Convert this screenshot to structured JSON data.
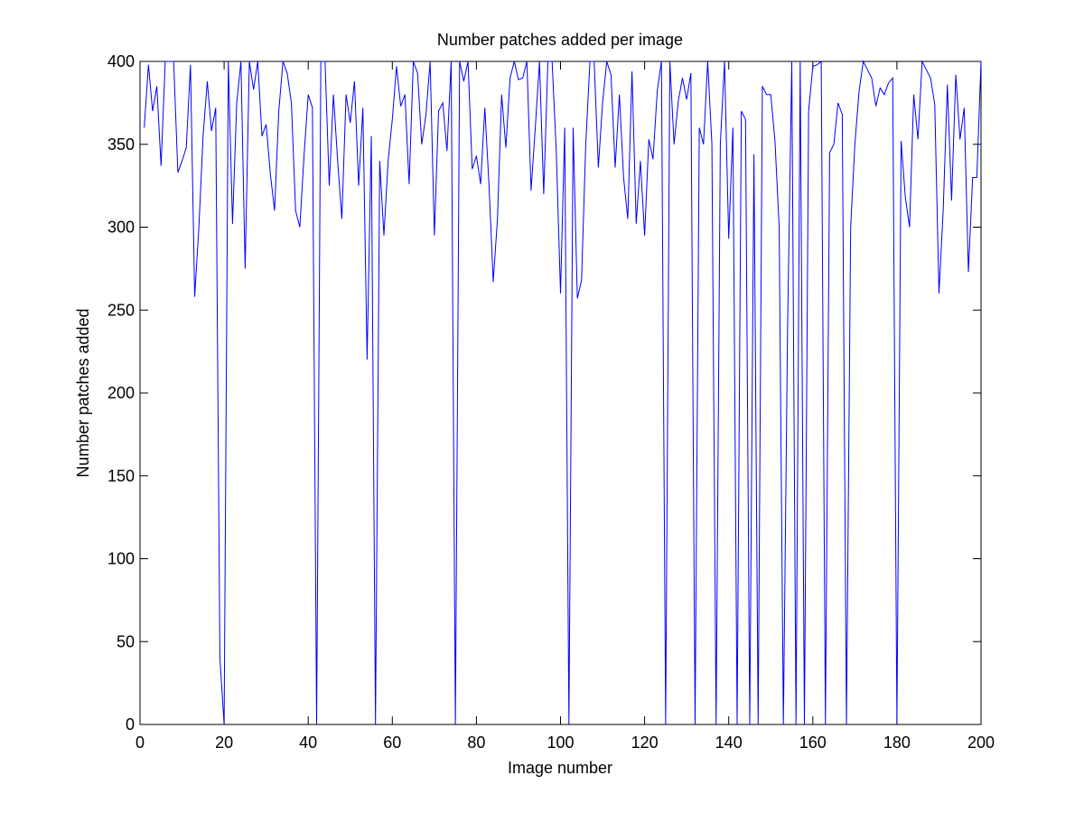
{
  "chart_data": {
    "type": "line",
    "title": "Number patches added per image",
    "xlabel": "Image number",
    "ylabel": "Number patches added",
    "xlim": [
      0,
      200
    ],
    "ylim": [
      0,
      400
    ],
    "xticks": [
      0,
      20,
      40,
      60,
      80,
      100,
      120,
      140,
      160,
      180,
      200
    ],
    "yticks": [
      0,
      50,
      100,
      150,
      200,
      250,
      300,
      350,
      400
    ],
    "grid": false,
    "line_color": "#0000ff",
    "series": [
      {
        "x": [
          1,
          2,
          3,
          4,
          5,
          6,
          7,
          8,
          9,
          10,
          11,
          12,
          13,
          14,
          15,
          16,
          17,
          18,
          19,
          20,
          21,
          22,
          23,
          24,
          25,
          26,
          27,
          28,
          29,
          30,
          31,
          32,
          33,
          34,
          35,
          36,
          37,
          38,
          39,
          40,
          41,
          42,
          43,
          44,
          45,
          46,
          47,
          48,
          49,
          50,
          51,
          52,
          53,
          54,
          55,
          56,
          57,
          58,
          59,
          60,
          61,
          62,
          63,
          64,
          65,
          66,
          67,
          68,
          69,
          70,
          71,
          72,
          73,
          74,
          75,
          76,
          77,
          78,
          79,
          80,
          81,
          82,
          83,
          84,
          85,
          86,
          87,
          88,
          89,
          90,
          91,
          92,
          93,
          94,
          95,
          96,
          97,
          98,
          99,
          100,
          101,
          102,
          103,
          104,
          105,
          106,
          107,
          108,
          109,
          110,
          111,
          112,
          113,
          114,
          115,
          116,
          117,
          118,
          119,
          120,
          121,
          122,
          123,
          124,
          125,
          126,
          127,
          128,
          129,
          130,
          131,
          132,
          133,
          134,
          135,
          136,
          137,
          138,
          139,
          140,
          141,
          142,
          143,
          144,
          145,
          146,
          147,
          148,
          149,
          150,
          151,
          152,
          153,
          154,
          155,
          156,
          157,
          158,
          159,
          160,
          161,
          162,
          163,
          164,
          165,
          166,
          167,
          168,
          169,
          170,
          171,
          172,
          173,
          174,
          175,
          176,
          177,
          178,
          179,
          180,
          181,
          182,
          183,
          184,
          185,
          186,
          187,
          188,
          189,
          190,
          191,
          192,
          193,
          194,
          195,
          196,
          197,
          198,
          199,
          200
        ],
        "values": [
          360,
          398,
          370,
          385,
          337,
          400,
          400,
          400,
          333,
          340,
          348,
          398,
          258,
          300,
          355,
          388,
          358,
          372,
          40,
          0,
          400,
          302,
          375,
          400,
          275,
          400,
          383,
          400,
          355,
          362,
          332,
          310,
          370,
          400,
          393,
          375,
          310,
          300,
          343,
          380,
          372,
          0,
          400,
          400,
          325,
          380,
          340,
          305,
          380,
          363,
          388,
          325,
          372,
          220,
          355,
          0,
          340,
          295,
          340,
          365,
          397,
          373,
          380,
          326,
          400,
          393,
          350,
          368,
          400,
          295,
          370,
          375,
          346,
          400,
          0,
          400,
          388,
          400,
          335,
          343,
          326,
          372,
          325,
          267,
          305,
          380,
          348,
          390,
          400,
          389,
          390,
          400,
          322,
          360,
          400,
          320,
          400,
          400,
          345,
          260,
          360,
          0,
          360,
          257,
          268,
          350,
          400,
          400,
          336,
          375,
          400,
          392,
          336,
          380,
          330,
          305,
          394,
          302,
          340,
          295,
          353,
          341,
          382,
          400,
          0,
          400,
          350,
          376,
          390,
          377,
          393,
          0,
          360,
          350,
          400,
          350,
          0,
          350,
          400,
          293,
          360,
          0,
          370,
          365,
          0,
          344,
          0,
          385,
          380,
          380,
          352,
          300,
          0,
          240,
          400,
          0,
          400,
          0,
          370,
          397,
          398,
          400,
          0,
          345,
          350,
          375,
          368,
          0,
          300,
          350,
          382,
          400,
          395,
          390,
          373,
          384,
          380,
          387,
          390,
          0,
          352,
          318,
          300,
          380,
          353,
          402,
          395,
          390,
          374,
          260,
          310,
          386,
          316,
          392,
          353,
          372,
          273,
          330,
          330,
          400
        ]
      }
    ]
  }
}
